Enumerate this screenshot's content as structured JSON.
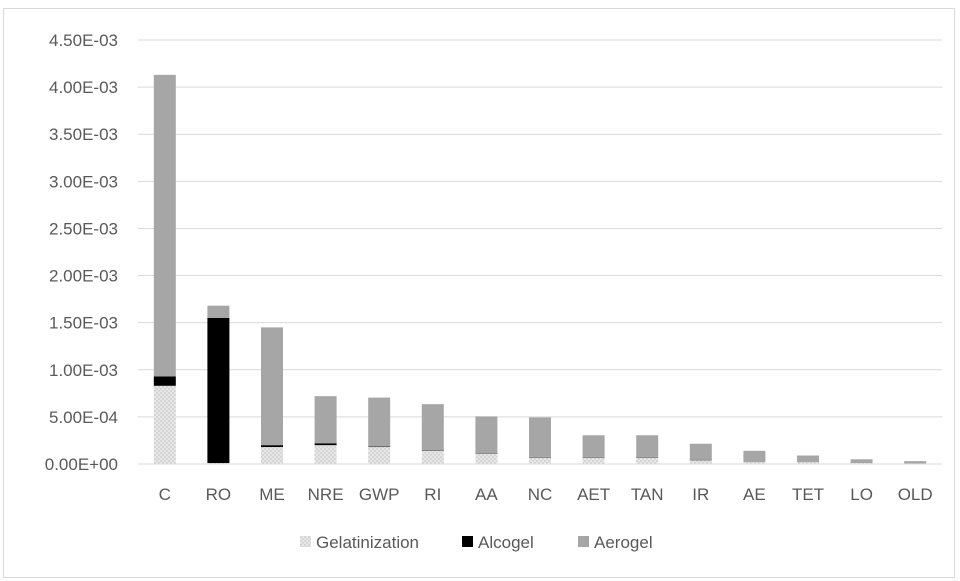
{
  "chart_data": {
    "type": "bar",
    "stacked": true,
    "title": "",
    "xlabel": "",
    "ylabel": "",
    "ylim": [
      0,
      0.0045
    ],
    "y_ticks": [
      0,
      0.0005,
      0.001,
      0.0015,
      0.002,
      0.0025,
      0.003,
      0.0035,
      0.004,
      0.0045
    ],
    "y_tick_labels": [
      "0.00E+00",
      "5.00E-04",
      "1.00E-03",
      "1.50E-03",
      "2.00E-03",
      "2.50E-03",
      "3.00E-03",
      "3.50E-03",
      "4.00E-03",
      "4.50E-03"
    ],
    "grid": "horizontal",
    "legend_position": "bottom",
    "categories": [
      "C",
      "RO",
      "ME",
      "NRE",
      "GWP",
      "RI",
      "AA",
      "NC",
      "AET",
      "TAN",
      "IR",
      "AE",
      "TET",
      "LO",
      "OLD"
    ],
    "series": [
      {
        "name": "Gelatinization",
        "color": "#e0e0e0",
        "values": [
          0.00083,
          1e-05,
          0.00018,
          0.0002,
          0.00018,
          0.00014,
          0.00011,
          7e-05,
          7e-05,
          7e-05,
          4e-05,
          2e-05,
          2e-05,
          1e-05,
          5e-06
        ]
      },
      {
        "name": "Alcogel",
        "color": "#000000",
        "values": [
          0.0001,
          0.00154,
          2e-05,
          2e-05,
          5e-06,
          5e-06,
          5e-06,
          5e-06,
          5e-06,
          5e-06,
          5e-06,
          0.0,
          0.0,
          0.0,
          0.0
        ]
      },
      {
        "name": "Aerogel",
        "color": "#a6a6a6",
        "values": [
          0.0032,
          0.00013,
          0.00125,
          0.0005,
          0.00052,
          0.00049,
          0.00039,
          0.00042,
          0.00023,
          0.00023,
          0.00017,
          0.00012,
          7e-05,
          4e-05,
          2.5e-05
        ]
      }
    ]
  }
}
